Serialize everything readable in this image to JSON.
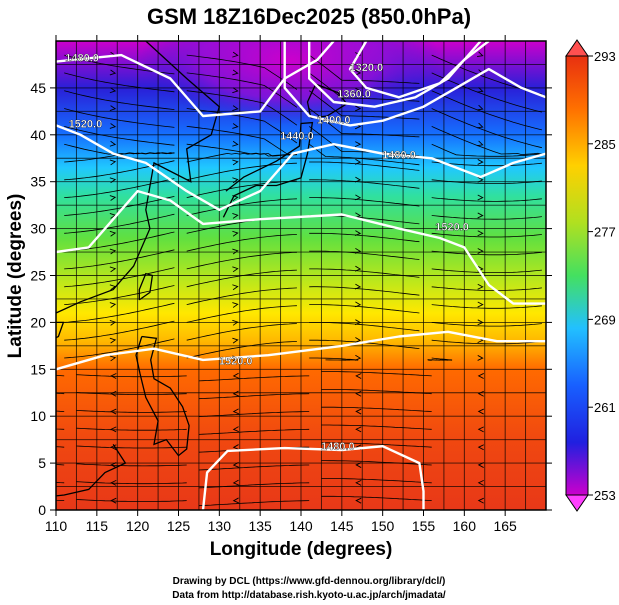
{
  "chart_data": {
    "type": "heatmap",
    "title": "GSM 18Z16Dec2025 (850.0hPa)",
    "xlabel": "Longitude (degrees)",
    "ylabel": "Latitude  (degrees)",
    "xlim": [
      110,
      170
    ],
    "ylim": [
      0,
      50
    ],
    "x_ticks": [
      "110",
      "115",
      "120",
      "125",
      "130",
      "135",
      "140",
      "145",
      "150",
      "155",
      "160",
      "165"
    ],
    "y_ticks": [
      "0",
      "5",
      "10",
      "15",
      "20",
      "25",
      "30",
      "35",
      "40",
      "45"
    ],
    "grid": true,
    "colorbar": {
      "range": [
        253,
        293
      ],
      "ticks": [
        "293",
        "285",
        "277",
        "269",
        "261",
        "253"
      ],
      "colors": [
        "#cc00cc",
        "#2020e0",
        "#22c0ff",
        "#44e060",
        "#e8e800",
        "#ff7000",
        "#e83010"
      ],
      "placement": "right"
    },
    "contour_labels": [
      {
        "text": "1480.0",
        "lon": 113.2,
        "lat": 47.8
      },
      {
        "text": "1520.0",
        "lon": 113.6,
        "lat": 40.8
      },
      {
        "text": "1320.0",
        "lon": 148.0,
        "lat": 46.8
      },
      {
        "text": "1360.0",
        "lon": 146.5,
        "lat": 44.0
      },
      {
        "text": "1400.0",
        "lon": 144.0,
        "lat": 41.2
      },
      {
        "text": "1440.0",
        "lon": 139.5,
        "lat": 39.5
      },
      {
        "text": "1480.0",
        "lon": 152.0,
        "lat": 37.5
      },
      {
        "text": "1520.0",
        "lon": 158.5,
        "lat": 29.8
      },
      {
        "text": "1520.0",
        "lon": 132.0,
        "lat": 15.5
      },
      {
        "text": "1480.0",
        "lon": 144.5,
        "lat": 6.4
      }
    ],
    "credit_lines": [
      "Drawing by DCL (https://www.gfd-dennou.org/library/dcl/)",
      "Data from http://database.rish.kyoto-u.ac.jp/arch/jmadata/"
    ]
  }
}
